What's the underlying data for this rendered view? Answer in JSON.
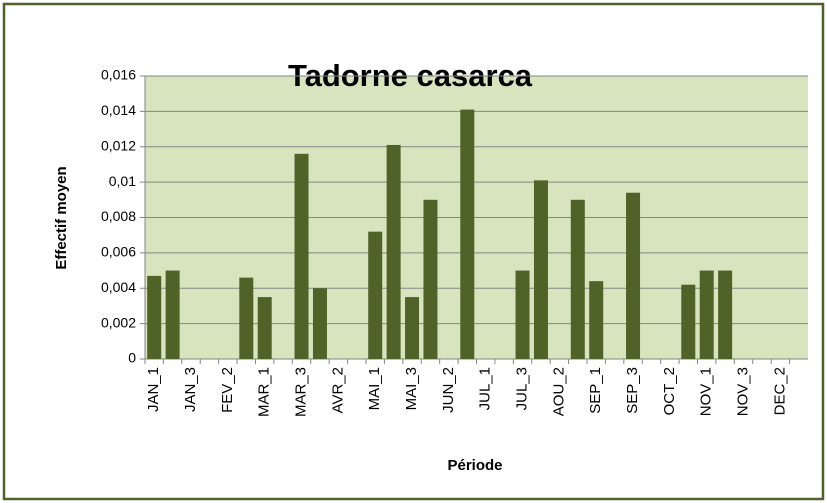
{
  "chart_data": {
    "type": "bar",
    "title": "Tadorne casarca",
    "x_label": "Période",
    "y_label": "Effectif moyen",
    "categories": [
      "JAN_1",
      null,
      "JAN_3",
      null,
      "FEV_2",
      null,
      "MAR_1",
      null,
      "MAR_3",
      null,
      "AVR_2",
      null,
      "MAI_1",
      null,
      "MAI_3",
      null,
      "JUN_2",
      null,
      "JUL_1",
      null,
      "JUL_3",
      null,
      "AOU_2",
      null,
      "SEP_1",
      null,
      "SEP_3",
      null,
      "OCT_2",
      null,
      "NOV_1",
      null,
      "NOV_3",
      null,
      "DEC_2",
      null
    ],
    "values": [
      0.0047,
      0.005,
      0,
      0,
      0,
      0.0046,
      0.0035,
      0,
      0.0116,
      0.004,
      0,
      0,
      0.0072,
      0.0121,
      0.0035,
      0.009,
      0,
      0.0141,
      0,
      0,
      0.005,
      0.0101,
      0,
      0.009,
      0.0044,
      0,
      0.0094,
      0,
      0,
      0.0042,
      0.005,
      0.005,
      0,
      0,
      0,
      0
    ],
    "color": "#4f6228",
    "plot_background": "#d7e4bd",
    "grid": true,
    "ylim": [
      0,
      0.016
    ],
    "yticks": [
      0,
      {
        "value": 0.002,
        "label": "0,002"
      },
      {
        "value": 0.004,
        "label": "0,004"
      },
      {
        "value": 0.006,
        "label": "0,006"
      },
      {
        "value": 0.008,
        "label": "0,008"
      },
      {
        "value": 0.01,
        "label": "0,01"
      },
      {
        "value": 0.012,
        "label": "0,012"
      },
      {
        "value": 0.014,
        "label": "0,014"
      },
      {
        "value": 0.016,
        "label": "0,016"
      }
    ]
  }
}
